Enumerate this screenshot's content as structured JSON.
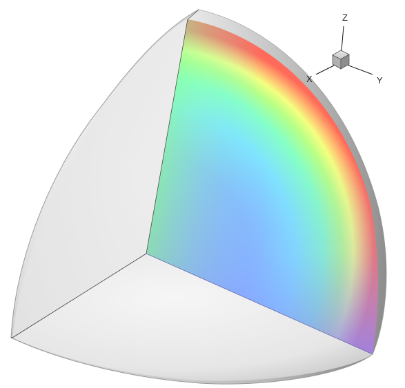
{
  "figure": {
    "type": "3d-octant-sphere-contour",
    "colormap": [
      "#8f8cff",
      "#7fd8ff",
      "#80ffd6",
      "#8cff8a",
      "#f2ff80",
      "#ffb070",
      "#ff6a5a"
    ]
  },
  "axes": {
    "z_label": "Z",
    "x_label": "X",
    "y_label": "Y"
  },
  "colors": {
    "shell": "#d4d4d4",
    "shell_dark": "#8e8e8e",
    "floor": "#ebebeb",
    "edge": "#3a3a3a"
  }
}
